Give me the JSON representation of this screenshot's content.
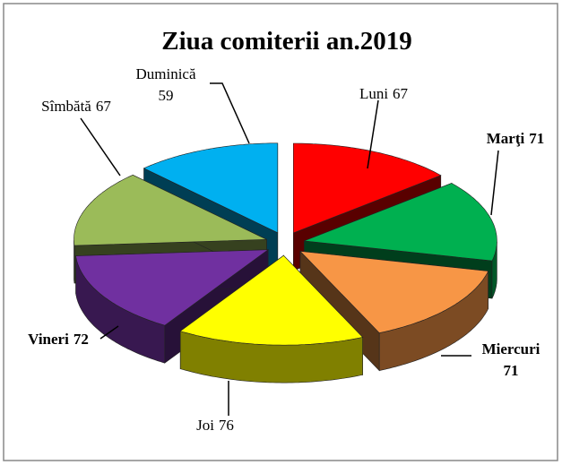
{
  "chart_data": {
    "type": "pie3d",
    "title": "Ziua comiterii an.2019",
    "categories": [
      "Luni",
      "Marţi",
      "Miercuri",
      "Joi",
      "Vineri",
      "Sîmbătă",
      "Duminică"
    ],
    "values": [
      67,
      71,
      71,
      76,
      72,
      67,
      59
    ],
    "colors": [
      "#ff0000",
      "#00b050",
      "#f79646",
      "#ffff00",
      "#7030a0",
      "#9bbb59",
      "#00b0f0"
    ]
  }
}
